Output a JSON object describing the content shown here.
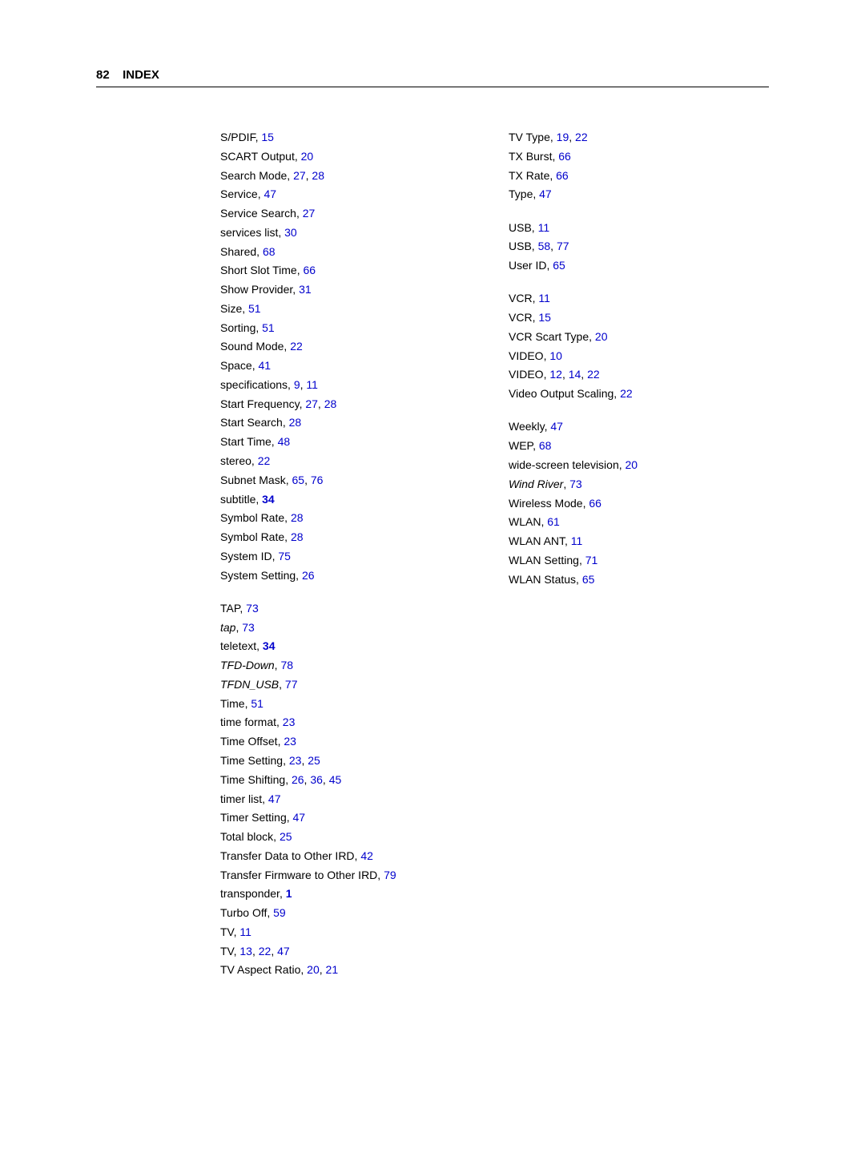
{
  "header": {
    "page_number": "82",
    "title": "INDEX"
  },
  "link_color": "#0000cc",
  "text_color": "#000000",
  "font_size": 14,
  "columns": [
    {
      "groups": [
        {
          "gap": false,
          "entries": [
            {
              "term": "S/PDIF",
              "refs": [
                {
                  "t": "15"
                }
              ]
            },
            {
              "term": "SCART Output",
              "refs": [
                {
                  "t": "20"
                }
              ]
            },
            {
              "term": "Search Mode",
              "refs": [
                {
                  "t": "27"
                },
                {
                  "t": "28"
                }
              ]
            },
            {
              "term": "Service",
              "refs": [
                {
                  "t": "47"
                }
              ]
            },
            {
              "term": "Service Search",
              "refs": [
                {
                  "t": "27"
                }
              ]
            },
            {
              "term": "services list",
              "refs": [
                {
                  "t": "30"
                }
              ]
            },
            {
              "term": "Shared",
              "refs": [
                {
                  "t": "68"
                }
              ]
            },
            {
              "term": "Short Slot Time",
              "refs": [
                {
                  "t": "66"
                }
              ]
            },
            {
              "term": "Show Provider",
              "refs": [
                {
                  "t": "31"
                }
              ]
            },
            {
              "term": "Size",
              "refs": [
                {
                  "t": "51"
                }
              ]
            },
            {
              "term": "Sorting",
              "refs": [
                {
                  "t": "51"
                }
              ]
            },
            {
              "term": "Sound Mode",
              "refs": [
                {
                  "t": "22"
                }
              ]
            },
            {
              "term": "Space",
              "refs": [
                {
                  "t": "41"
                }
              ]
            },
            {
              "term": "specifications",
              "refs": [
                {
                  "t": "9"
                },
                {
                  "t": "11"
                }
              ]
            },
            {
              "term": "Start Frequency",
              "refs": [
                {
                  "t": "27"
                },
                {
                  "t": "28"
                }
              ]
            },
            {
              "term": "Start Search",
              "refs": [
                {
                  "t": "28"
                }
              ]
            },
            {
              "term": "Start Time",
              "refs": [
                {
                  "t": "48"
                }
              ]
            },
            {
              "term": "stereo",
              "refs": [
                {
                  "t": "22"
                }
              ]
            },
            {
              "term": "Subnet Mask",
              "refs": [
                {
                  "t": "65"
                },
                {
                  "t": "76"
                }
              ]
            },
            {
              "term": "subtitle",
              "refs": [
                {
                  "t": "34",
                  "bold": true
                }
              ]
            },
            {
              "term": "Symbol Rate",
              "refs": [
                {
                  "t": "28"
                }
              ]
            },
            {
              "term": "Symbol Rate",
              "refs": [
                {
                  "t": "28"
                }
              ]
            },
            {
              "term": "System ID",
              "refs": [
                {
                  "t": "75"
                }
              ]
            },
            {
              "term": "System Setting",
              "refs": [
                {
                  "t": "26"
                }
              ]
            }
          ]
        },
        {
          "gap": true,
          "entries": [
            {
              "term": "TAP",
              "refs": [
                {
                  "t": "73"
                }
              ]
            },
            {
              "term": "tap",
              "italic": true,
              "refs": [
                {
                  "t": "73"
                }
              ]
            },
            {
              "term": "teletext",
              "refs": [
                {
                  "t": "34",
                  "bold": true
                }
              ]
            },
            {
              "term": "TFD-Down",
              "italic": true,
              "refs": [
                {
                  "t": "78"
                }
              ]
            },
            {
              "term": "TFDN_USB",
              "italic": true,
              "usb_small": true,
              "refs": [
                {
                  "t": "77"
                }
              ]
            },
            {
              "term": "Time",
              "refs": [
                {
                  "t": "51"
                }
              ]
            },
            {
              "term": "time format",
              "refs": [
                {
                  "t": "23"
                }
              ]
            },
            {
              "term": "Time Offset",
              "refs": [
                {
                  "t": "23"
                }
              ]
            },
            {
              "term": "Time Setting",
              "refs": [
                {
                  "t": "23"
                },
                {
                  "t": "25"
                }
              ]
            },
            {
              "term": "Time Shifting",
              "refs": [
                {
                  "t": "26"
                },
                {
                  "t": "36"
                },
                {
                  "t": "45"
                }
              ]
            },
            {
              "term": "timer list",
              "refs": [
                {
                  "t": "47"
                }
              ]
            },
            {
              "term": "Timer Setting",
              "refs": [
                {
                  "t": "47"
                }
              ]
            },
            {
              "term": "Total block",
              "refs": [
                {
                  "t": "25"
                }
              ]
            },
            {
              "term": "Transfer Data to Other IRD",
              "refs": [
                {
                  "t": "42"
                }
              ]
            },
            {
              "term": "Transfer Firmware to Other IRD",
              "refs": [
                {
                  "t": "79"
                }
              ]
            },
            {
              "term": "transponder",
              "refs": [
                {
                  "t": "1",
                  "bold": true
                }
              ]
            },
            {
              "term": "Turbo Off",
              "refs": [
                {
                  "t": "59"
                }
              ]
            },
            {
              "term": "TV",
              "refs": [
                {
                  "t": "11"
                }
              ]
            },
            {
              "term": "TV",
              "refs": [
                {
                  "t": "13"
                },
                {
                  "t": "22"
                },
                {
                  "t": "47"
                }
              ]
            },
            {
              "term": "TV Aspect Ratio",
              "refs": [
                {
                  "t": "20"
                },
                {
                  "t": "21"
                }
              ]
            }
          ]
        }
      ]
    },
    {
      "groups": [
        {
          "gap": false,
          "entries": [
            {
              "term": "TV Type",
              "refs": [
                {
                  "t": "19"
                },
                {
                  "t": "22"
                }
              ]
            },
            {
              "term": "TX Burst",
              "refs": [
                {
                  "t": "66"
                }
              ]
            },
            {
              "term": "TX Rate",
              "refs": [
                {
                  "t": "66"
                }
              ]
            },
            {
              "term": "Type",
              "refs": [
                {
                  "t": "47"
                }
              ]
            }
          ]
        },
        {
          "gap": true,
          "entries": [
            {
              "term": "USB",
              "refs": [
                {
                  "t": "11"
                }
              ]
            },
            {
              "term": "USB",
              "refs": [
                {
                  "t": "58"
                },
                {
                  "t": "77"
                }
              ]
            },
            {
              "term": "User ID",
              "refs": [
                {
                  "t": "65"
                }
              ]
            }
          ]
        },
        {
          "gap": true,
          "entries": [
            {
              "term": "VCR",
              "refs": [
                {
                  "t": "11"
                }
              ]
            },
            {
              "term": "VCR",
              "refs": [
                {
                  "t": "15"
                }
              ]
            },
            {
              "term": "VCR Scart Type",
              "refs": [
                {
                  "t": "20"
                }
              ]
            },
            {
              "term": "VIDEO",
              "refs": [
                {
                  "t": "10"
                }
              ]
            },
            {
              "term": "VIDEO",
              "refs": [
                {
                  "t": "12"
                },
                {
                  "t": "14"
                },
                {
                  "t": "22"
                }
              ]
            },
            {
              "term": "Video Output Scaling",
              "refs": [
                {
                  "t": "22"
                }
              ]
            }
          ]
        },
        {
          "gap": true,
          "entries": [
            {
              "term": "Weekly",
              "refs": [
                {
                  "t": "47"
                }
              ]
            },
            {
              "term": "WEP",
              "refs": [
                {
                  "t": "68"
                }
              ]
            },
            {
              "term": "wide-screen television",
              "refs": [
                {
                  "t": "20"
                }
              ]
            },
            {
              "term": "Wind River",
              "italic": true,
              "refs": [
                {
                  "t": "73"
                }
              ]
            },
            {
              "term": "Wireless Mode",
              "refs": [
                {
                  "t": "66"
                }
              ]
            },
            {
              "term": "WLAN",
              "refs": [
                {
                  "t": "61"
                }
              ]
            },
            {
              "term": "WLAN ANT",
              "refs": [
                {
                  "t": "11"
                }
              ]
            },
            {
              "term": "WLAN Setting",
              "refs": [
                {
                  "t": "71"
                }
              ]
            },
            {
              "term": "WLAN Status",
              "refs": [
                {
                  "t": "65"
                }
              ]
            }
          ]
        }
      ]
    }
  ]
}
